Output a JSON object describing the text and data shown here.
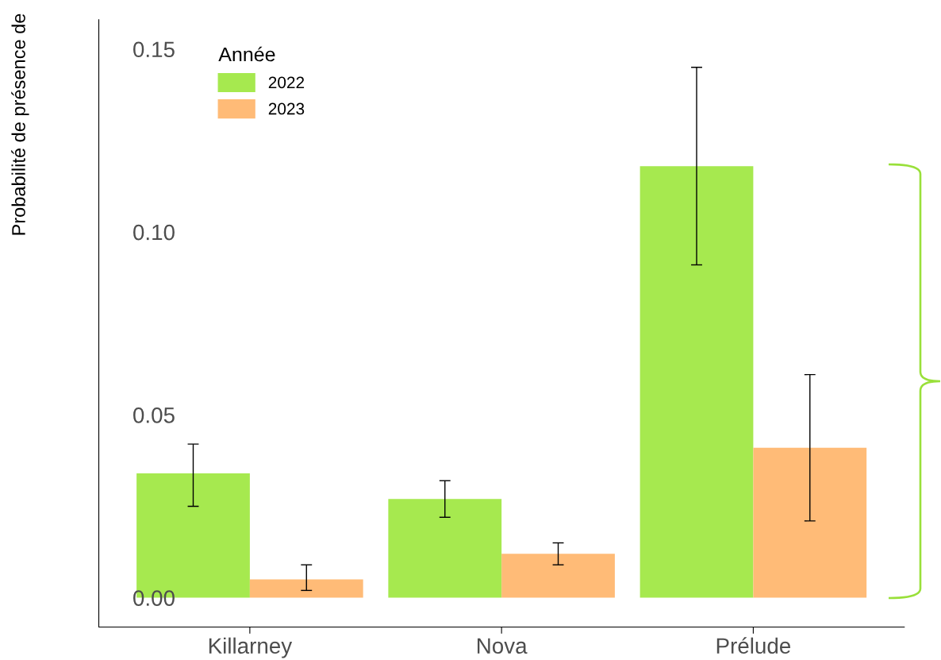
{
  "chart_data": {
    "type": "bar",
    "ylabel": "Probabilité de présence de",
    "legend_title": "Année",
    "categories": [
      "Killarney",
      "Nova",
      "Prélude"
    ],
    "series": [
      {
        "name": "2022",
        "color": "#a6e94f",
        "values": [
          0.034,
          0.027,
          0.118
        ],
        "errors": [
          [
            0.025,
            0.042
          ],
          [
            0.022,
            0.032
          ],
          [
            0.091,
            0.145
          ]
        ]
      },
      {
        "name": "2023",
        "color": "#ffbb77",
        "values": [
          0.005,
          0.012,
          0.041
        ],
        "errors": [
          [
            0.002,
            0.009
          ],
          [
            0.009,
            0.015
          ],
          [
            0.021,
            0.061
          ]
        ]
      }
    ],
    "ylim": [
      -0.008,
      0.158
    ],
    "yticks": [
      {
        "value": 0,
        "label": "0.00"
      },
      {
        "value": 0.05,
        "label": "0.05"
      },
      {
        "value": 0.1,
        "label": "0.10"
      },
      {
        "value": 0.15,
        "label": "0.15"
      }
    ],
    "grid": false,
    "legend": "top left"
  }
}
